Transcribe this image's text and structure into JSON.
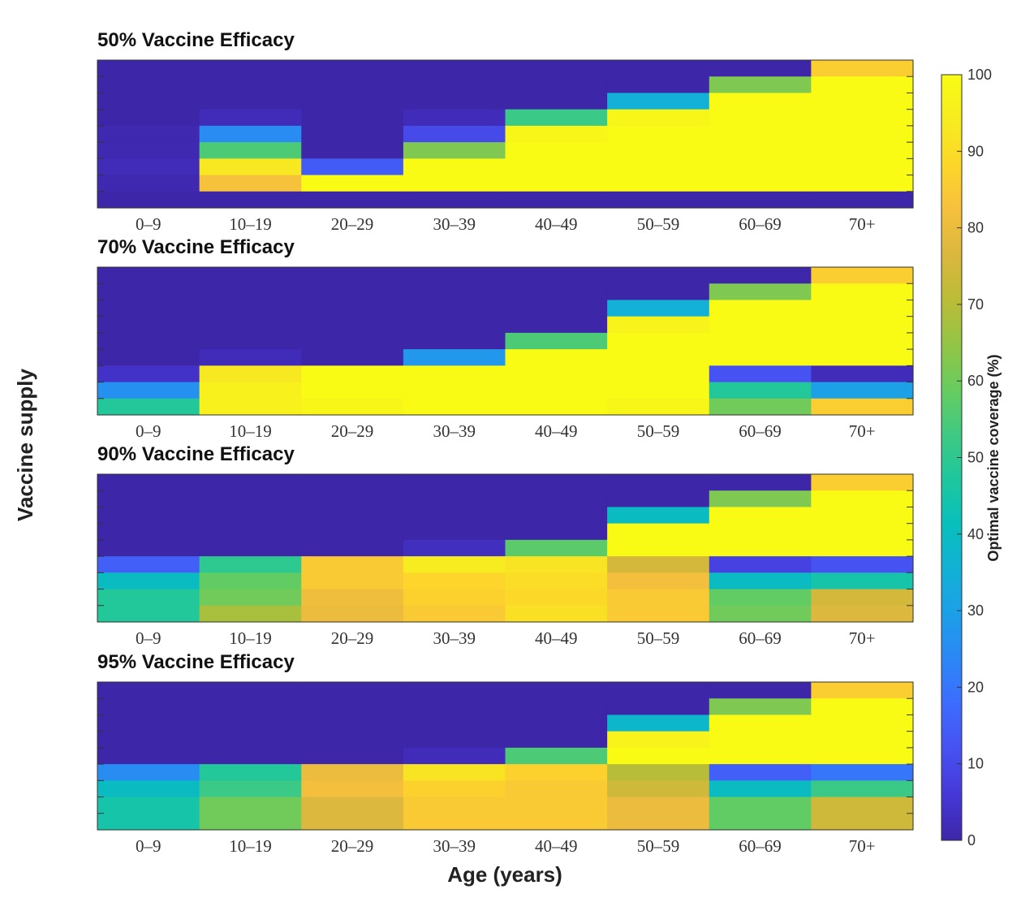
{
  "chart_data": {
    "type": "heatmap",
    "ylabel": "Vaccine supply",
    "xlabel": "Age (years)",
    "colorbar": {
      "label": "Optimal vaccine coverage (%)",
      "range": [
        0,
        100
      ],
      "ticks": [
        "0",
        "10",
        "20",
        "30",
        "40",
        "50",
        "60",
        "70",
        "80",
        "90",
        "100"
      ],
      "colormap": [
        "#3d26a8",
        "#4538d7",
        "#4751f1",
        "#3d6bfe",
        "#2c86f6",
        "#1d9ee8",
        "#12b1d6",
        "#08bfbd",
        "#1dc79e",
        "#3fc983",
        "#67cc5f",
        "#93c546",
        "#bbbc37",
        "#dbb73e",
        "#f6c03d",
        "#fdd62a",
        "#f7ec1f",
        "#f9fb15"
      ]
    },
    "panels": [
      {
        "title": "50% Vaccine Efficacy",
        "x_tick_labels": [
          "0–9",
          "10–19",
          "20–29",
          "30–39",
          "40–49",
          "50–59",
          "60–69",
          "70+"
        ],
        "n_rows": 9,
        "values_top_to_bottom": [
          [
            0,
            0,
            0,
            0,
            0,
            0,
            0,
            86
          ],
          [
            0,
            0,
            0,
            0,
            0,
            0,
            62,
            100
          ],
          [
            0,
            0,
            0,
            0,
            0,
            35,
            100,
            100
          ],
          [
            0,
            2,
            0,
            2,
            52,
            98,
            100,
            100
          ],
          [
            1,
            25,
            0,
            10,
            98,
            100,
            100,
            100
          ],
          [
            1,
            55,
            0,
            62,
            100,
            100,
            100,
            100
          ],
          [
            2,
            93,
            14,
            100,
            100,
            100,
            100,
            100
          ],
          [
            1,
            83,
            100,
            100,
            100,
            100,
            100,
            100
          ],
          [
            0,
            0,
            0,
            0,
            0,
            0,
            0,
            0
          ]
        ]
      },
      {
        "title": "70% Vaccine Efficacy",
        "x_tick_labels": [
          "0–9",
          "10–19",
          "20–29",
          "30–39",
          "40–49",
          "50–59",
          "60–69",
          "70+"
        ],
        "n_rows": 9,
        "values_top_to_bottom": [
          [
            0,
            0,
            0,
            0,
            0,
            0,
            0,
            86
          ],
          [
            0,
            0,
            0,
            0,
            0,
            0,
            62,
            100
          ],
          [
            0,
            0,
            0,
            0,
            0,
            35,
            100,
            100
          ],
          [
            0,
            0,
            0,
            0,
            0,
            97,
            100,
            100
          ],
          [
            0,
            0,
            0,
            0,
            55,
            100,
            100,
            100
          ],
          [
            0,
            2,
            0,
            28,
            100,
            100,
            100,
            100
          ],
          [
            4,
            93,
            100,
            100,
            100,
            100,
            12,
            2
          ],
          [
            26,
            96,
            100,
            100,
            100,
            100,
            48,
            30
          ],
          [
            48,
            96,
            98,
            100,
            100,
            98,
            60,
            86
          ]
        ]
      },
      {
        "title": "90% Vaccine Efficacy",
        "x_tick_labels": [
          "0–9",
          "10–19",
          "20–29",
          "30–39",
          "40–49",
          "50–59",
          "60–69",
          "70+"
        ],
        "n_rows": 9,
        "values_top_to_bottom": [
          [
            0,
            0,
            0,
            0,
            0,
            0,
            0,
            86
          ],
          [
            0,
            0,
            0,
            0,
            0,
            0,
            62,
            100
          ],
          [
            0,
            0,
            0,
            0,
            0,
            40,
            100,
            100
          ],
          [
            0,
            0,
            0,
            0,
            0,
            100,
            100,
            100
          ],
          [
            0,
            0,
            0,
            3,
            57,
            100,
            100,
            100
          ],
          [
            15,
            50,
            85,
            94,
            92,
            75,
            8,
            12
          ],
          [
            40,
            58,
            85,
            88,
            90,
            82,
            40,
            45
          ],
          [
            48,
            60,
            81,
            87,
            89,
            85,
            58,
            75
          ],
          [
            48,
            68,
            80,
            85,
            91,
            85,
            60,
            77
          ]
        ]
      },
      {
        "title": "95% Vaccine Efficacy",
        "x_tick_labels": [
          "0–9",
          "10–19",
          "20–29",
          "30–39",
          "40–49",
          "50–59",
          "60–69",
          "70+"
        ],
        "n_rows": 9,
        "values_top_to_bottom": [
          [
            0,
            0,
            0,
            0,
            0,
            0,
            0,
            86
          ],
          [
            0,
            0,
            0,
            0,
            0,
            0,
            62,
            100
          ],
          [
            0,
            0,
            0,
            0,
            0,
            38,
            100,
            100
          ],
          [
            0,
            0,
            0,
            0,
            0,
            97,
            100,
            100
          ],
          [
            0,
            0,
            0,
            2,
            55,
            100,
            100,
            100
          ],
          [
            25,
            48,
            80,
            92,
            87,
            70,
            15,
            20
          ],
          [
            40,
            52,
            82,
            87,
            85,
            74,
            40,
            52
          ],
          [
            45,
            60,
            77,
            85,
            85,
            80,
            58,
            74
          ],
          [
            45,
            60,
            77,
            85,
            85,
            80,
            58,
            74
          ]
        ]
      }
    ]
  }
}
